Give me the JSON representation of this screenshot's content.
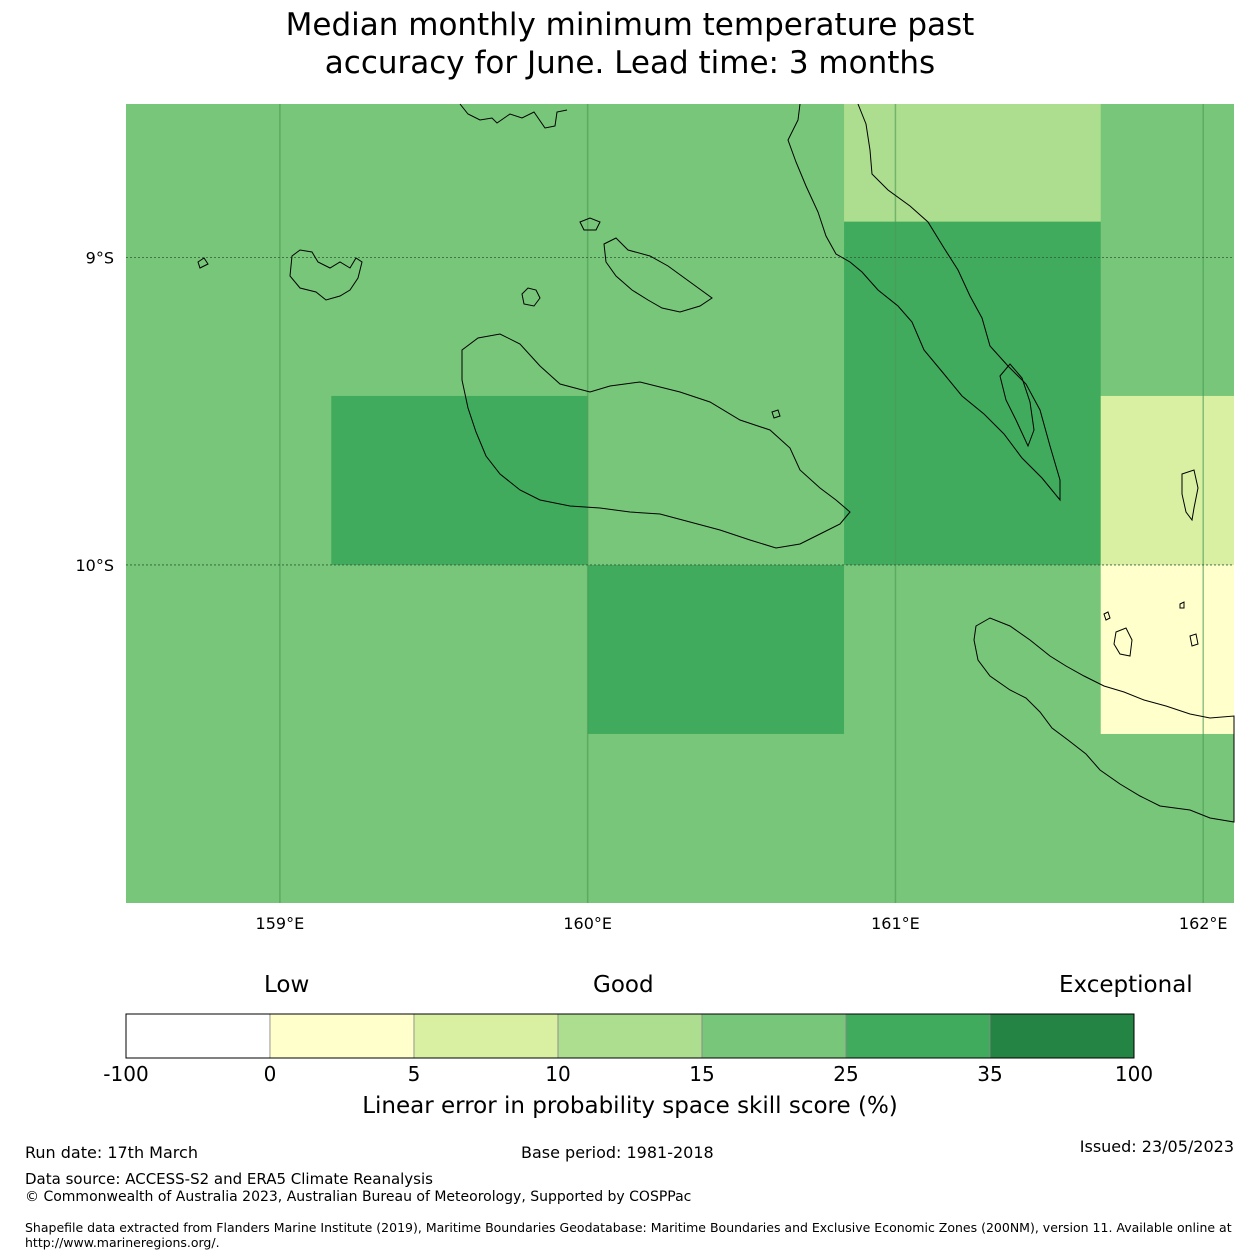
{
  "title_line1": "Median monthly minimum temperature past",
  "title_line2": "accuracy for June. Lead time: 3 months",
  "map": {
    "lon_range": [
      158.5,
      162.1
    ],
    "lat_range": [
      -11.1,
      -8.5
    ],
    "grid_cells": [
      {
        "lon": [
          158.5,
          162.1
        ],
        "lat": [
          -11.1,
          -8.5
        ],
        "value": 20
      },
      {
        "lon": [
          160.833,
          161.667
        ],
        "lat": [
          -8.5,
          -8.883
        ],
        "value": 12
      },
      {
        "lon": [
          160.833,
          161.667
        ],
        "lat": [
          -8.883,
          -10.0
        ],
        "value": 30
      },
      {
        "lon": [
          159.167,
          160.0
        ],
        "lat": [
          -9.45,
          -10.0
        ],
        "value": 30
      },
      {
        "lon": [
          160.0,
          160.833
        ],
        "lat": [
          -10.0,
          -10.55
        ],
        "value": 30
      },
      {
        "lon": [
          161.667,
          162.1
        ],
        "lat": [
          -9.45,
          -10.0
        ],
        "value": 7
      },
      {
        "lon": [
          161.667,
          162.1
        ],
        "lat": [
          -10.0,
          -10.55
        ],
        "value": 2
      }
    ],
    "x_ticks": [
      "159°E",
      "160°E",
      "161°E",
      "162°E"
    ],
    "x_tick_values": [
      159,
      160,
      161,
      162
    ],
    "y_ticks": [
      "9°S",
      "10°S"
    ],
    "y_tick_values": [
      -9,
      -10
    ]
  },
  "legend": {
    "categories": [
      "Low",
      "Good",
      "Exceptional"
    ],
    "bins": [
      {
        "from": -100,
        "to": 0,
        "color": "#ffffff"
      },
      {
        "from": 0,
        "to": 5,
        "color": "#ffffcc"
      },
      {
        "from": 5,
        "to": 10,
        "color": "#d9f0a3"
      },
      {
        "from": 10,
        "to": 15,
        "color": "#addd8e"
      },
      {
        "from": 15,
        "to": 25,
        "color": "#78c679"
      },
      {
        "from": 25,
        "to": 35,
        "color": "#41ab5d"
      },
      {
        "from": 35,
        "to": 100,
        "color": "#238443"
      }
    ],
    "tick_labels": [
      "-100",
      "0",
      "5",
      "10",
      "15",
      "25",
      "35",
      "100"
    ],
    "label": "Linear error in probability space skill score (%)"
  },
  "footer": {
    "run_date": "Run date: 17th March",
    "base_period": "Base period: 1981-2018",
    "issued": "Issued: 23/05/2023",
    "data_source": "Data source: ACCESS-S2 and ERA5 Climate Reanalysis",
    "copyright": "© Commonwealth of Australia 2023, Australian Bureau of Meteorology, Supported by COSPPac",
    "shapefile_line1": "Shapefile data extracted from Flanders Marine Institute (2019), Maritime Boundaries Geodatabase: Maritime Boundaries and Exclusive Economic Zones (200NM), version 11. Available online at",
    "shapefile_line2": "http://www.marineregions.org/."
  }
}
